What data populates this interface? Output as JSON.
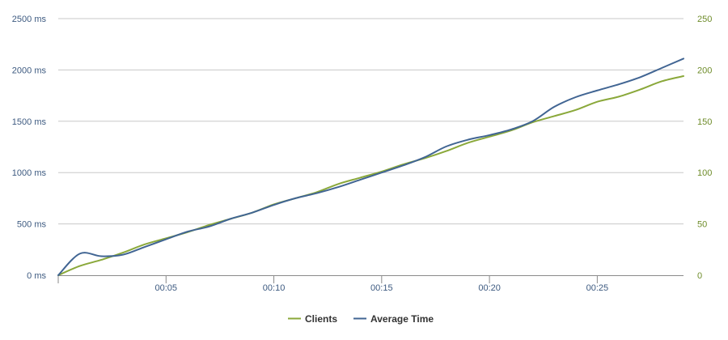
{
  "chart_data": {
    "type": "line",
    "xlabel": "",
    "x_axis": {
      "unit": "mm:ss",
      "range_seconds": [
        0,
        29
      ],
      "ticks": [
        {
          "value": 5,
          "label": "00:05"
        },
        {
          "value": 10,
          "label": "00:10"
        },
        {
          "value": 15,
          "label": "00:15"
        },
        {
          "value": 20,
          "label": "00:20"
        },
        {
          "value": 25,
          "label": "00:25"
        }
      ]
    },
    "y_left": {
      "unit": "ms",
      "ylim": [
        0,
        2500
      ],
      "ticks": [
        {
          "value": 0,
          "label": "0 ms"
        },
        {
          "value": 500,
          "label": "500 ms"
        },
        {
          "value": 1000,
          "label": "1000 ms"
        },
        {
          "value": 1500,
          "label": "1500 ms"
        },
        {
          "value": 2000,
          "label": "2000 ms"
        },
        {
          "value": 2500,
          "label": "2500 ms"
        }
      ]
    },
    "y_right": {
      "ylim": [
        0,
        250
      ],
      "ticks": [
        {
          "value": 0,
          "label": "0"
        },
        {
          "value": 50,
          "label": "50"
        },
        {
          "value": 100,
          "label": "100"
        },
        {
          "value": 150,
          "label": "150"
        },
        {
          "value": 200,
          "label": "200"
        },
        {
          "value": 250,
          "label": "250"
        }
      ]
    },
    "grid": "horizontal",
    "legend_position": "bottom-center",
    "series": [
      {
        "name": "Clients",
        "axis": "right",
        "color": "#8aa83a",
        "points": [
          [
            0,
            0
          ],
          [
            1,
            9
          ],
          [
            2,
            15
          ],
          [
            3,
            22
          ],
          [
            4,
            30
          ],
          [
            5,
            36
          ],
          [
            6,
            42
          ],
          [
            7,
            49
          ],
          [
            8,
            55
          ],
          [
            9,
            61
          ],
          [
            10,
            69
          ],
          [
            11,
            75
          ],
          [
            12,
            81
          ],
          [
            13,
            89
          ],
          [
            14,
            95
          ],
          [
            15,
            101
          ],
          [
            16,
            108
          ],
          [
            17,
            114
          ],
          [
            18,
            121
          ],
          [
            19,
            129
          ],
          [
            20,
            135
          ],
          [
            21,
            141
          ],
          [
            22,
            149
          ],
          [
            23,
            155
          ],
          [
            24,
            161
          ],
          [
            25,
            169
          ],
          [
            26,
            174
          ],
          [
            27,
            181
          ],
          [
            28,
            189
          ],
          [
            29,
            194
          ]
        ]
      },
      {
        "name": "Average Time",
        "axis": "left",
        "color": "#416593",
        "points": [
          [
            0,
            0
          ],
          [
            1,
            210
          ],
          [
            2,
            185
          ],
          [
            3,
            200
          ],
          [
            4,
            275
          ],
          [
            5,
            350
          ],
          [
            6,
            425
          ],
          [
            7,
            475
          ],
          [
            8,
            550
          ],
          [
            9,
            610
          ],
          [
            10,
            685
          ],
          [
            11,
            750
          ],
          [
            12,
            800
          ],
          [
            13,
            860
          ],
          [
            14,
            930
          ],
          [
            15,
            1000
          ],
          [
            16,
            1070
          ],
          [
            17,
            1150
          ],
          [
            18,
            1255
          ],
          [
            19,
            1320
          ],
          [
            20,
            1365
          ],
          [
            21,
            1420
          ],
          [
            22,
            1500
          ],
          [
            23,
            1640
          ],
          [
            24,
            1735
          ],
          [
            25,
            1800
          ],
          [
            26,
            1860
          ],
          [
            27,
            1930
          ],
          [
            28,
            2020
          ],
          [
            29,
            2110
          ]
        ]
      }
    ]
  }
}
